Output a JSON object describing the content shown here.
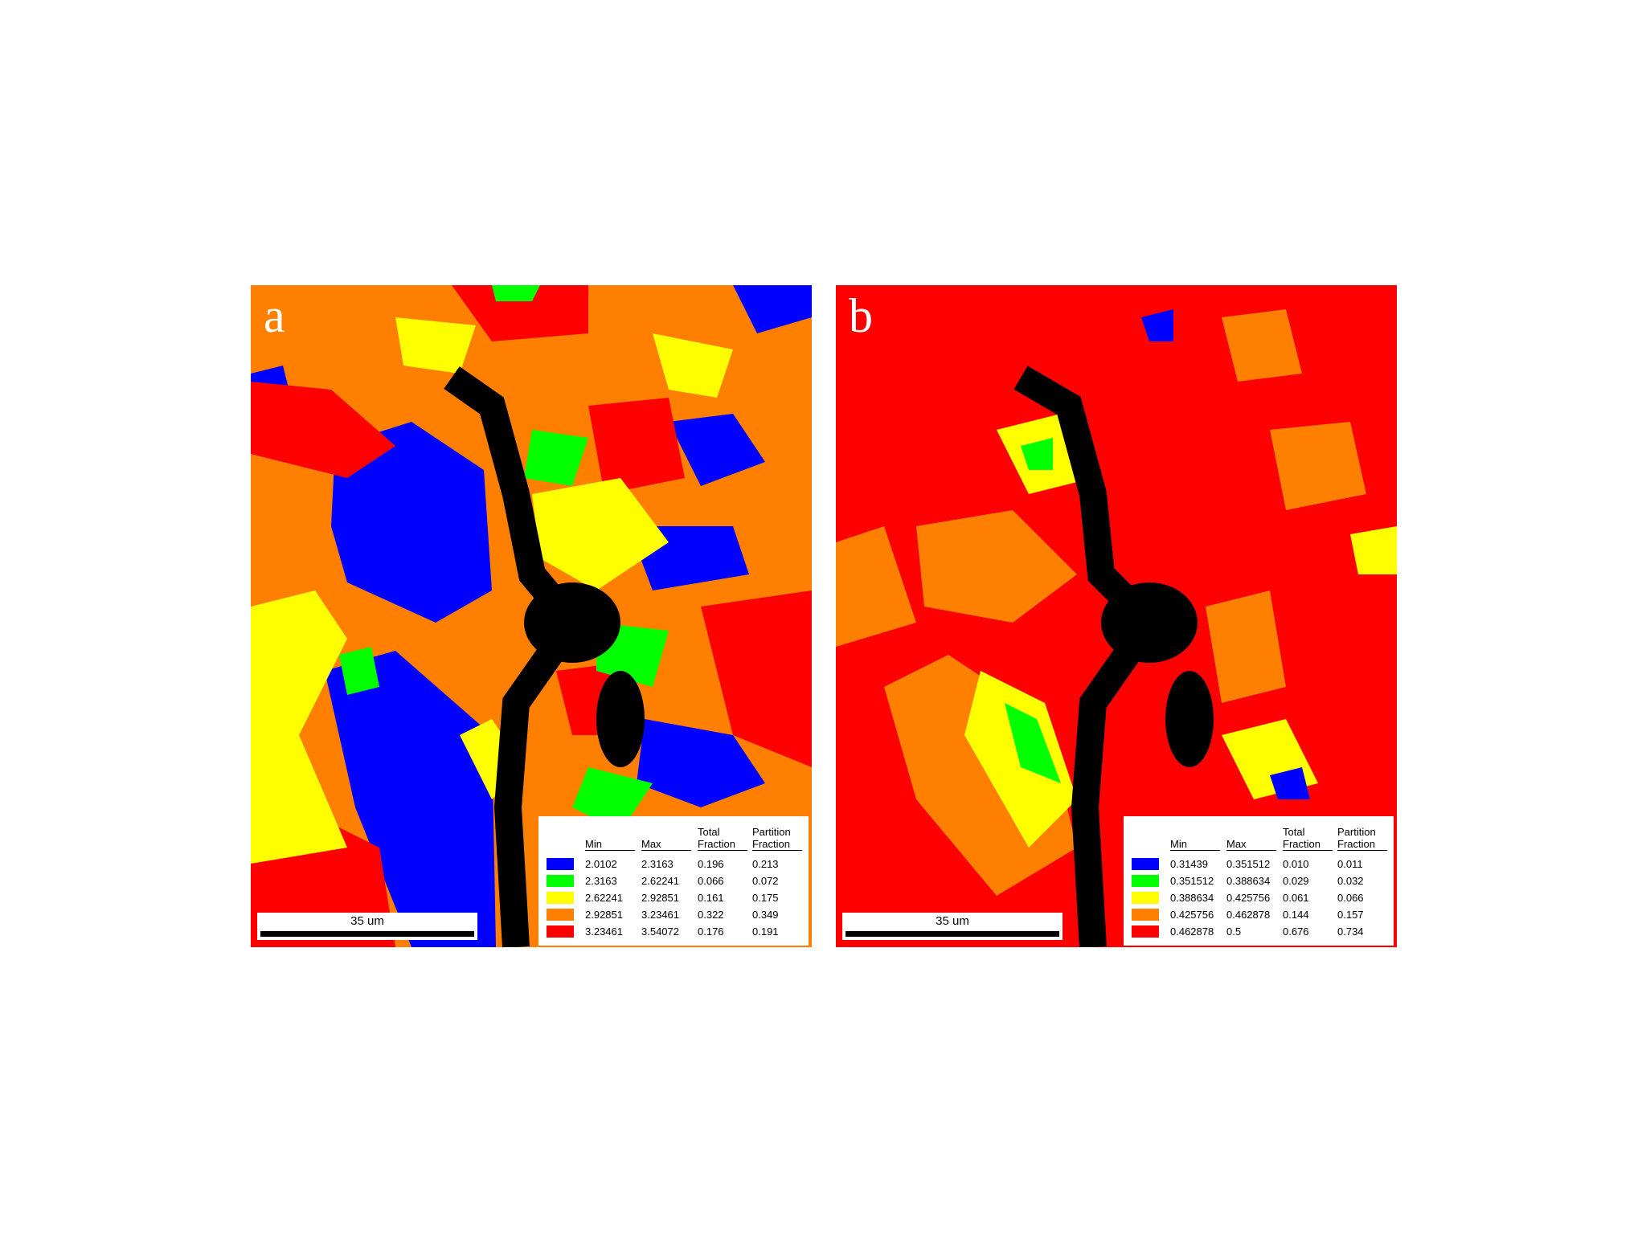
{
  "panels": [
    {
      "label": "a",
      "scale_bar": "35 um",
      "legend": {
        "headers": [
          "Min",
          "Max",
          "Total Fraction",
          "Partition Fraction"
        ],
        "rows": [
          {
            "color": "#0000ff",
            "cells": [
              "2.0102",
              "2.3163",
              "0.196",
              "0.213"
            ]
          },
          {
            "color": "#00ff00",
            "cells": [
              "2.3163",
              "2.62241",
              "0.066",
              "0.072"
            ]
          },
          {
            "color": "#ffff00",
            "cells": [
              "2.62241",
              "2.92851",
              "0.161",
              "0.175"
            ]
          },
          {
            "color": "#ff8000",
            "cells": [
              "2.92851",
              "3.23461",
              "0.322",
              "0.349"
            ]
          },
          {
            "color": "#ff0000",
            "cells": [
              "3.23461",
              "3.54072",
              "0.176",
              "0.191"
            ]
          }
        ]
      }
    },
    {
      "label": "b",
      "scale_bar": "35 um",
      "legend": {
        "headers": [
          "Min",
          "Max",
          "Total Fraction",
          "Partition Fraction"
        ],
        "rows": [
          {
            "color": "#0000ff",
            "cells": [
              "0.31439",
              "0.351512",
              "0.010",
              "0.011"
            ]
          },
          {
            "color": "#00ff00",
            "cells": [
              "0.351512",
              "0.388634",
              "0.029",
              "0.032"
            ]
          },
          {
            "color": "#ffff00",
            "cells": [
              "0.388634",
              "0.425756",
              "0.061",
              "0.066"
            ]
          },
          {
            "color": "#ff8000",
            "cells": [
              "0.425756",
              "0.462878",
              "0.144",
              "0.157"
            ]
          },
          {
            "color": "#ff0000",
            "cells": [
              "0.462878",
              "0.5",
              "0.676",
              "0.734"
            ]
          }
        ]
      }
    }
  ]
}
